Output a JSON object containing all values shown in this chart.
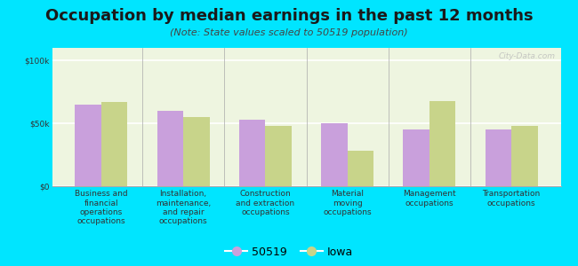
{
  "title": "Occupation by median earnings in the past 12 months",
  "subtitle": "(Note: State values scaled to 50519 population)",
  "categories": [
    "Business and\nfinancial\noperations\noccupations",
    "Installation,\nmaintenance,\nand repair\noccupations",
    "Construction\nand extraction\noccupations",
    "Material\nmoving\noccupations",
    "Management\noccupations",
    "Transportation\noccupations"
  ],
  "values_50519": [
    65000,
    60000,
    53000,
    50000,
    45000,
    45000
  ],
  "values_iowa": [
    67000,
    55000,
    48000,
    28000,
    68000,
    48000
  ],
  "color_50519": "#c9a0dc",
  "color_iowa": "#c8d48a",
  "background_color": "#00e5ff",
  "plot_bg": "#eef5e0",
  "ylabel_ticks": [
    0,
    50000,
    100000
  ],
  "ylim": [
    0,
    110000
  ],
  "legend_50519": "50519",
  "legend_iowa": "Iowa",
  "bar_width": 0.32,
  "title_fontsize": 13,
  "subtitle_fontsize": 8,
  "tick_fontsize": 6.5,
  "watermark": "City-Data.com"
}
